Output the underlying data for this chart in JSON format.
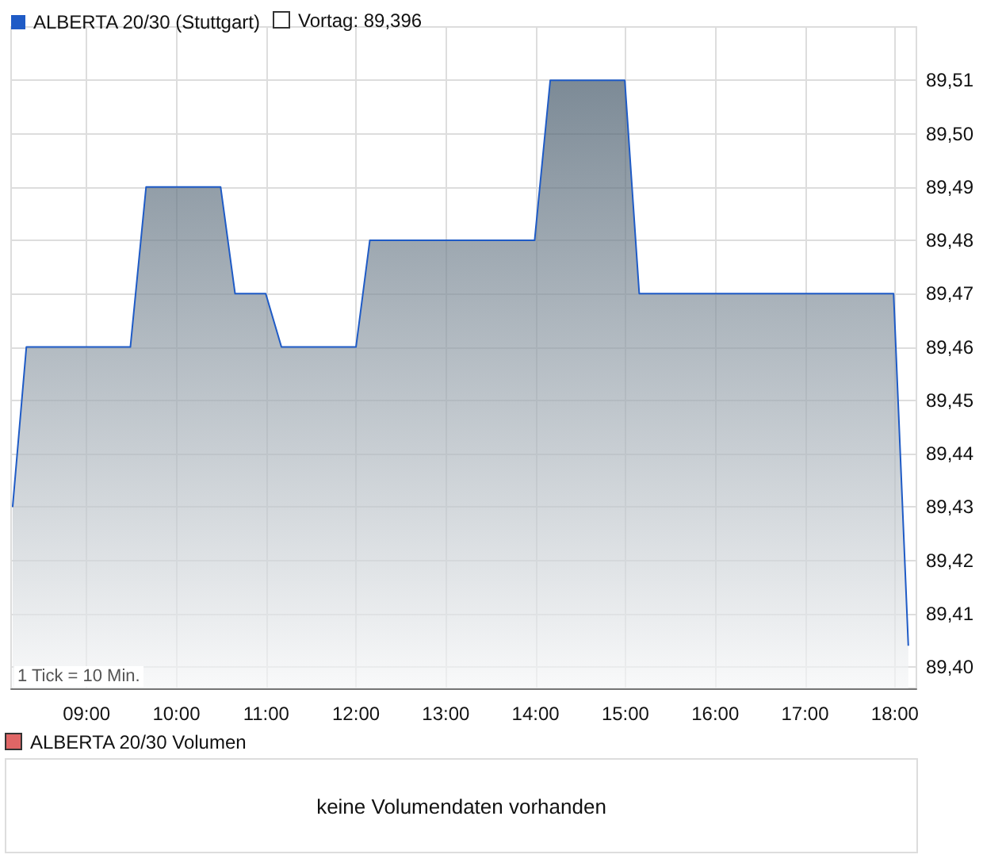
{
  "chart_data": [
    {
      "type": "area",
      "legend": "top left",
      "grid": true,
      "annotations": [
        "Vortag: 89,396",
        "1 Tick = 10 Min."
      ],
      "x": [
        8.177,
        8.33,
        9.488,
        9.663,
        10.493,
        10.654,
        10.995,
        11.17,
        12.0,
        12.154,
        13.989,
        14.163,
        14.993,
        15.154,
        17.986,
        18.15
      ],
      "series": [
        {
          "name": "ALBERTA 20/30 (Stuttgart)",
          "color": "#1f5bc6",
          "values": [
            89.43,
            89.46,
            89.46,
            89.49,
            89.49,
            89.47,
            89.47,
            89.46,
            89.46,
            89.48,
            89.48,
            89.51,
            89.51,
            89.47,
            89.47,
            89.404
          ]
        }
      ],
      "xlim": [
        8.16,
        18.24
      ],
      "xticks": [
        {
          "value": 9,
          "label": "09:00"
        },
        {
          "value": 10,
          "label": "10:00"
        },
        {
          "value": 11,
          "label": "11:00"
        },
        {
          "value": 12,
          "label": "12:00"
        },
        {
          "value": 13,
          "label": "13:00"
        },
        {
          "value": 14,
          "label": "14:00"
        },
        {
          "value": 15,
          "label": "15:00"
        },
        {
          "value": 16,
          "label": "16:00"
        },
        {
          "value": 17,
          "label": "17:00"
        },
        {
          "value": 18,
          "label": "18:00"
        }
      ],
      "ylim": [
        89.396,
        89.52
      ],
      "yticks": [
        {
          "value": 89.4,
          "label": "89,40"
        },
        {
          "value": 89.41,
          "label": "89,41"
        },
        {
          "value": 89.42,
          "label": "89,42"
        },
        {
          "value": 89.43,
          "label": "89,43"
        },
        {
          "value": 89.44,
          "label": "89,44"
        },
        {
          "value": 89.45,
          "label": "89,45"
        },
        {
          "value": 89.46,
          "label": "89,46"
        },
        {
          "value": 89.47,
          "label": "89,47"
        },
        {
          "value": 89.48,
          "label": "89,48"
        },
        {
          "value": 89.49,
          "label": "89,49"
        },
        {
          "value": 89.5,
          "label": "89,50"
        },
        {
          "value": 89.51,
          "label": "89,51"
        }
      ]
    },
    {
      "type": "other",
      "title": "ALBERTA 20/30 Volumen",
      "annotations": [
        "keine Volumendaten vorhanden"
      ]
    }
  ]
}
